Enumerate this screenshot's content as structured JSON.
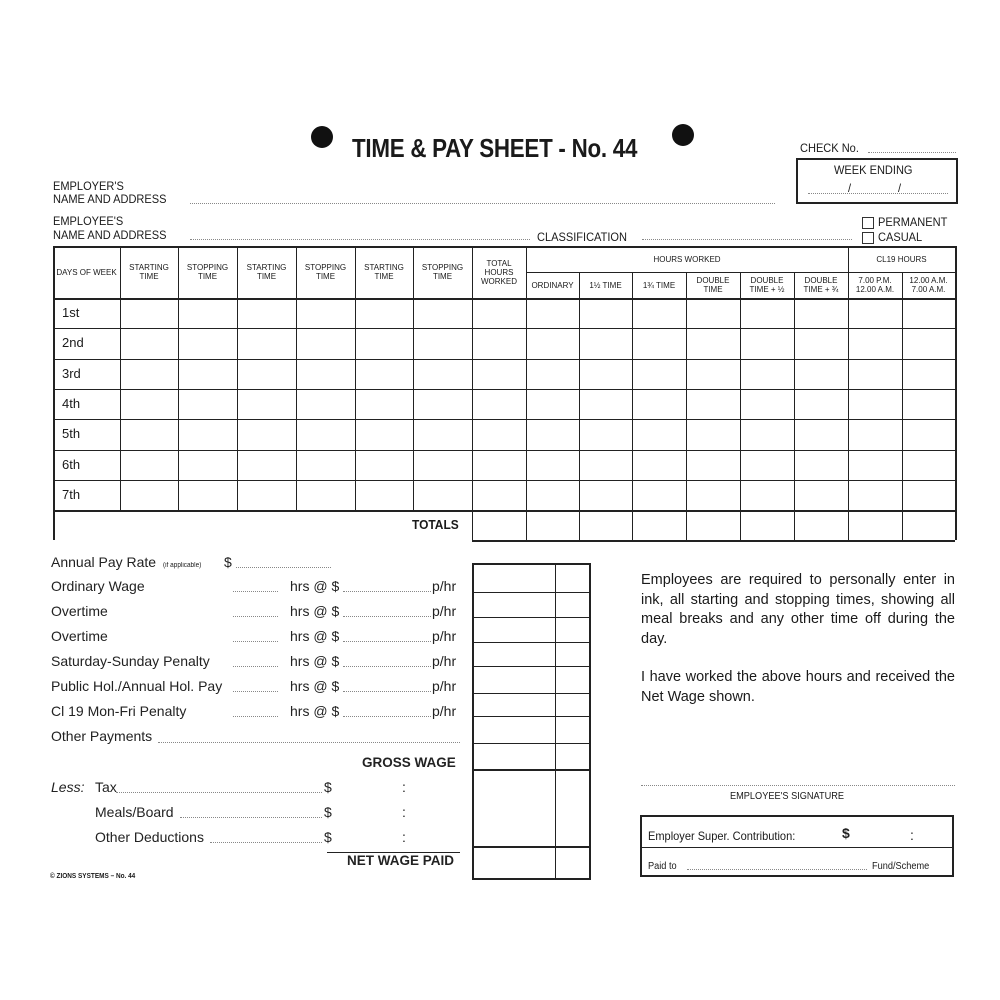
{
  "title": "TIME & PAY SHEET - No. 44",
  "check_no_label": "CHECK No.",
  "week_ending_label": "WEEK ENDING",
  "week_ending_sep": "/",
  "employer_label_1": "EMPLOYER'S",
  "employer_label_2": "NAME AND ADDRESS",
  "employee_label_1": "EMPLOYEE'S",
  "employee_label_2": "NAME AND ADDRESS",
  "classification_label": "CLASSIFICATION",
  "permanent_label": "PERMANENT",
  "casual_label": "CASUAL",
  "table": {
    "headers": [
      "DAYS OF WEEK",
      "STARTING TIME",
      "STOPPING TIME",
      "STARTING TIME",
      "STOPPING TIME",
      "STARTING TIME",
      "STOPPING TIME",
      "TOTAL HOURS WORKED"
    ],
    "hours_worked_group": "HOURS WORKED",
    "hours_worked_cols": [
      "ORDINARY",
      "1½ TIME",
      "1¾ TIME",
      "DOUBLE TIME",
      "DOUBLE TIME + ½",
      "DOUBLE TIME + ¾"
    ],
    "cl19_group": "CL19 HOURS",
    "cl19_cols": [
      "7.00 P.M. 12.00 A.M.",
      "12.00 A.M. 7.00 A.M."
    ],
    "days": [
      "1st",
      "2nd",
      "3rd",
      "4th",
      "5th",
      "6th",
      "7th"
    ],
    "totals_label": "TOTALS"
  },
  "pay": {
    "annual_label": "Annual Pay Rate",
    "annual_note": "(if applicable)",
    "dollar": "$",
    "hrs_at": "hrs @ $",
    "per_hr": "p/hr",
    "lines": [
      "Ordinary Wage",
      "Overtime",
      "Overtime",
      "Saturday-Sunday Penalty",
      "Public Hol./Annual Hol. Pay",
      "Cl 19 Mon-Fri Penalty"
    ],
    "other_payments": "Other Payments",
    "gross_wage": "GROSS WAGE",
    "less": "Less:",
    "deductions": [
      "Tax",
      "Meals/Board",
      "Other Deductions"
    ],
    "colon": ":",
    "net_wage": "NET WAGE PAID"
  },
  "notice_1": "Employees are required to personally enter in ink, all starting and stopping times, showing all meal breaks and any other time off during the day.",
  "notice_2": "I have worked the above hours and received the Net Wage shown.",
  "signature_label": "EMPLOYEE'S SIGNATURE",
  "super_label": "Employer Super. Contribution:",
  "paid_to_label": "Paid to",
  "fund_label": "Fund/Scheme",
  "footer": "© ZIONS SYSTEMS – No. 44"
}
